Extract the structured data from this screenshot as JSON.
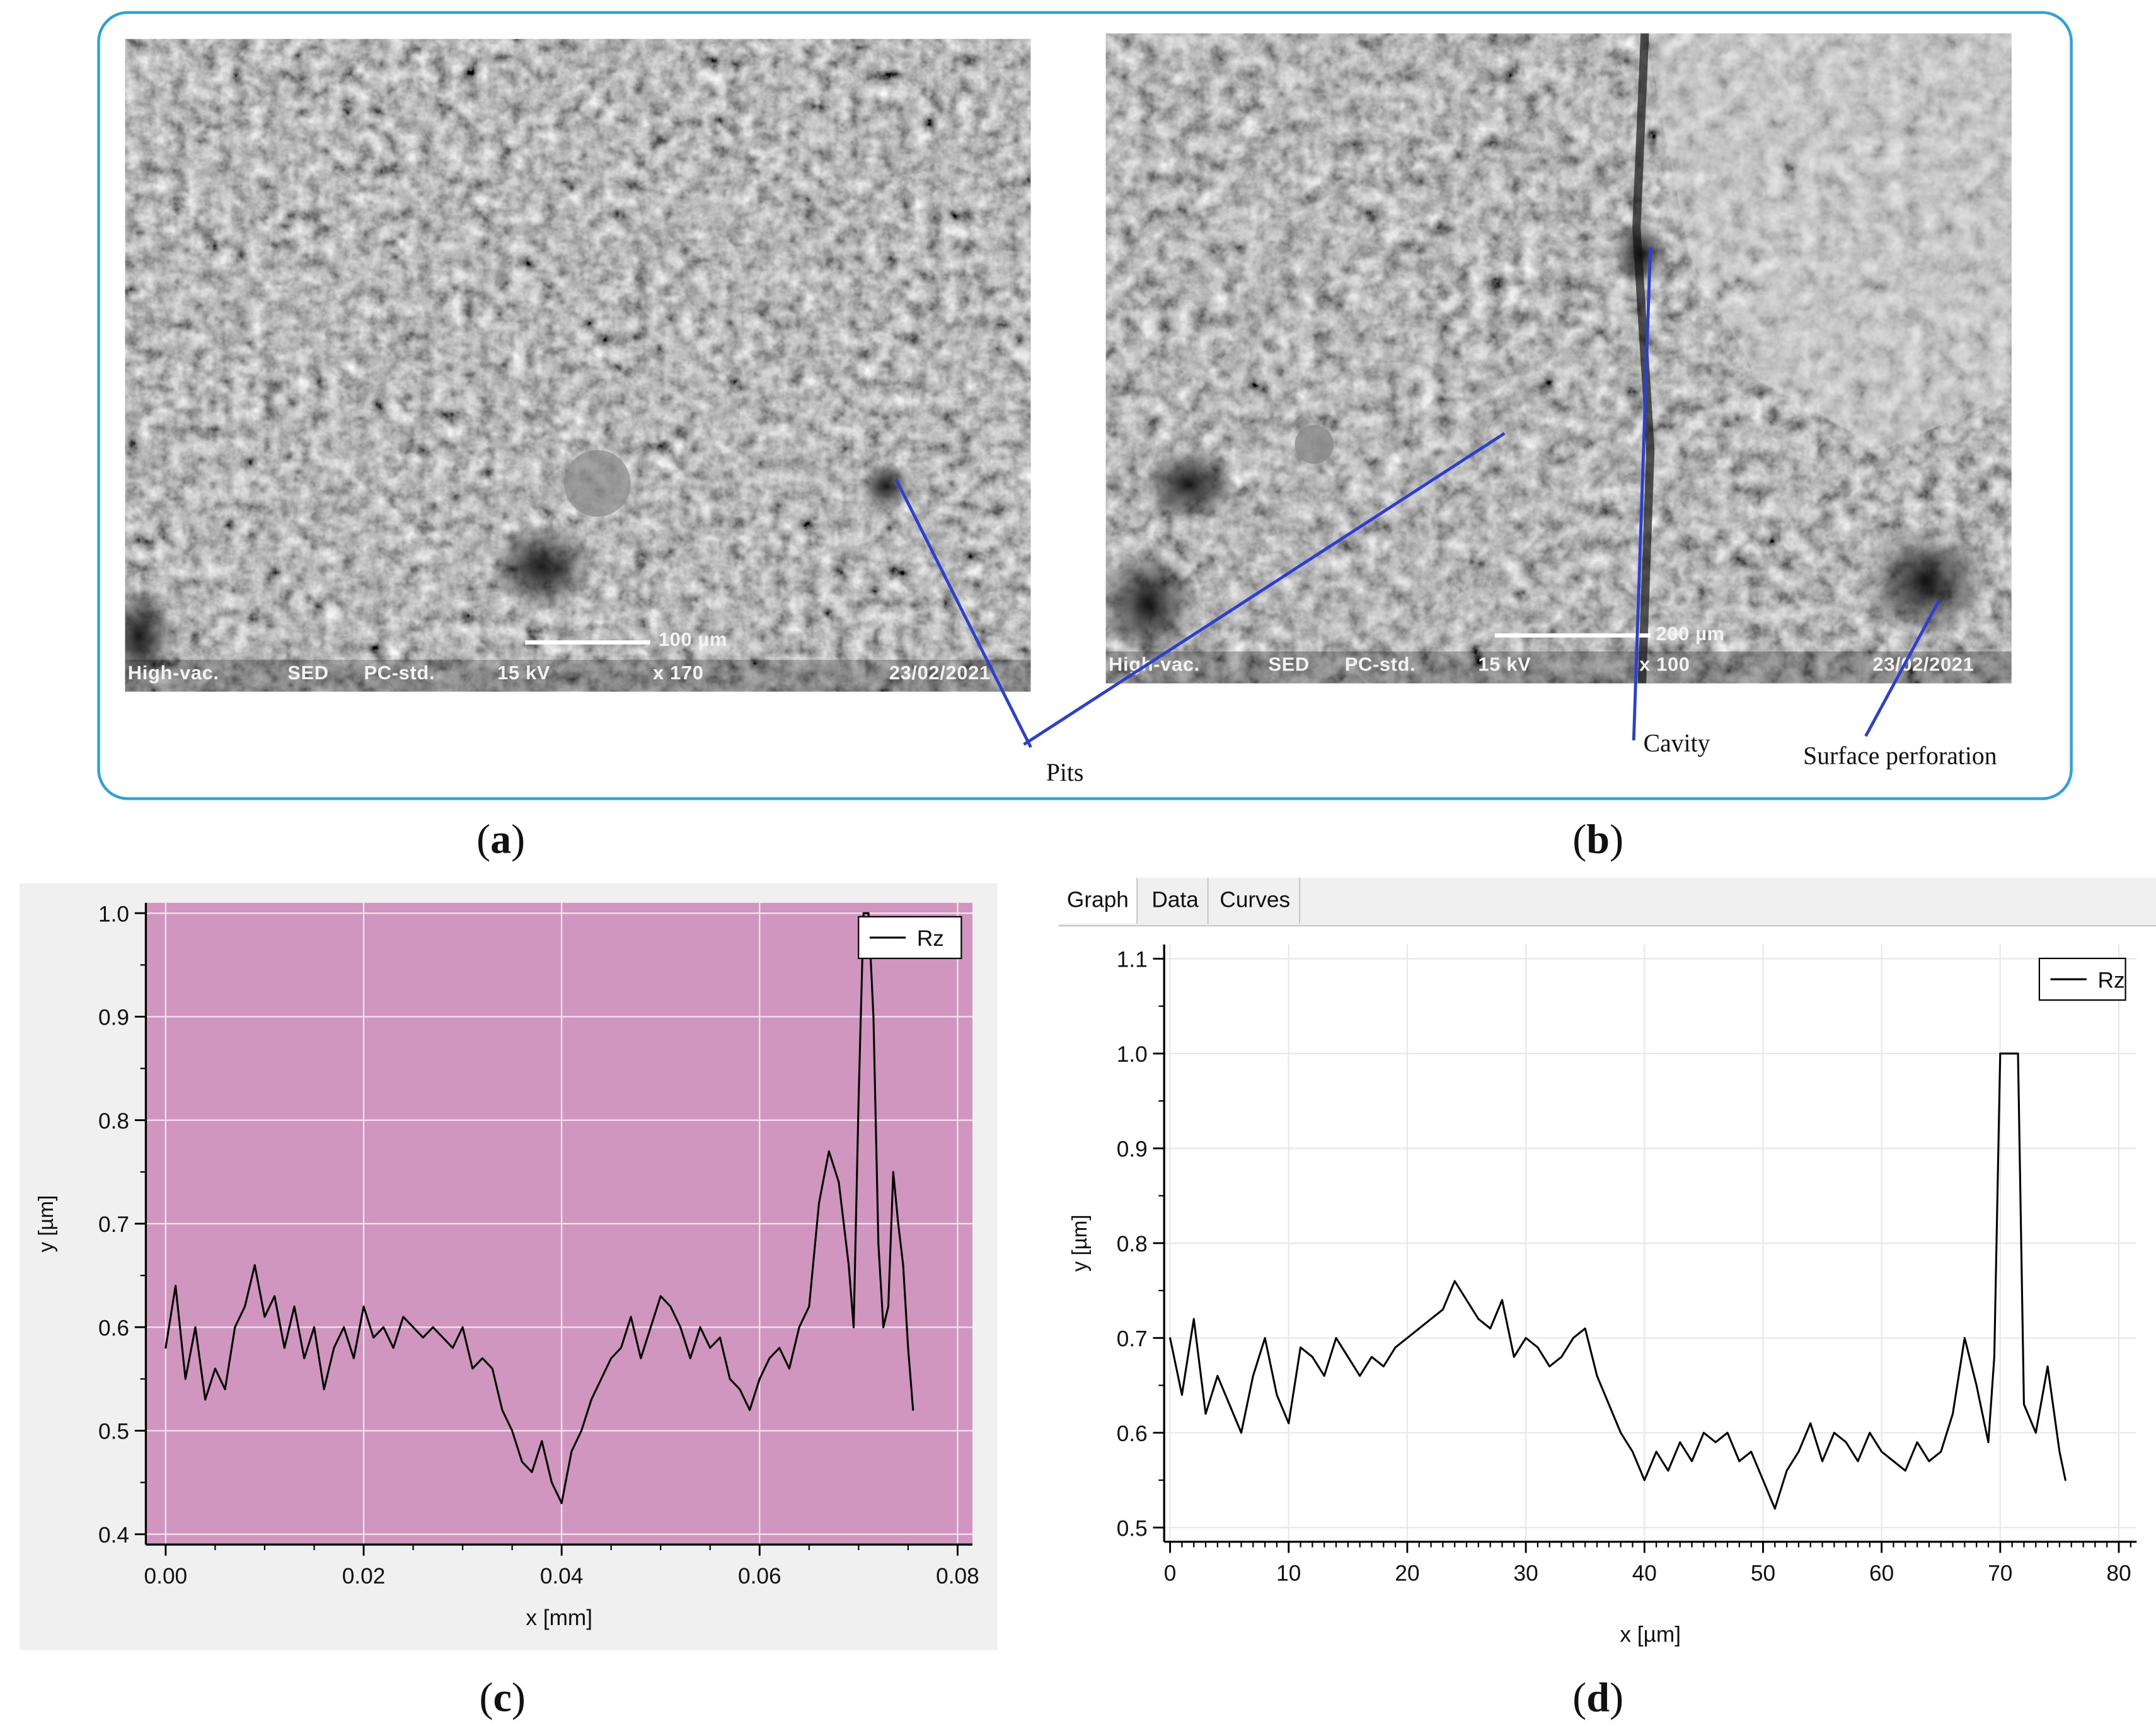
{
  "figure": {
    "panel_labels": [
      "a",
      "b",
      "c",
      "d"
    ],
    "callouts": {
      "pits": "Pits",
      "cavity": "Cavity",
      "surface_perforation": "Surface perforation"
    },
    "colors": {
      "frame": "#2aa3dc",
      "callout_line": "#2b3fd1",
      "plot_c_bg": "#d096c0"
    }
  },
  "sem_a": {
    "scale_bar": "100 µm",
    "databar": {
      "mode": "High-vac.",
      "detector": "SED",
      "probe": "PC-std.",
      "voltage": "15 kV",
      "magnification": "x 170",
      "date": "23/02/2021"
    }
  },
  "sem_b": {
    "scale_bar": "200 µm",
    "databar": {
      "mode": "High-vac.",
      "detector": "SED",
      "probe": "PC-std.",
      "voltage": "15 kV",
      "magnification": "x 100",
      "date": "23/02/2021"
    }
  },
  "tabs": [
    "Graph",
    "Data",
    "Curves"
  ],
  "chart_data": [
    {
      "id": "c",
      "type": "line",
      "xlabel": "x [mm]",
      "ylabel": "y [µm]",
      "xlim": [
        -0.002,
        0.0815
      ],
      "ylim": [
        0.39,
        1.01
      ],
      "xticks": [
        0.0,
        0.02,
        0.04,
        0.06,
        0.08
      ],
      "xtick_labels": [
        "0.00",
        "0.02",
        "0.04",
        "0.06",
        "0.08"
      ],
      "yticks": [
        0.4,
        0.5,
        0.6,
        0.7,
        0.8,
        0.9,
        1.0
      ],
      "ytick_labels": [
        "0.4",
        "0.5",
        "0.6",
        "0.7",
        "0.8",
        "0.9",
        "1.0"
      ],
      "grid": true,
      "legend": "top-right",
      "series": [
        {
          "name": "Rz",
          "x": [
            0.0,
            0.001,
            0.002,
            0.003,
            0.004,
            0.005,
            0.006,
            0.007,
            0.008,
            0.009,
            0.01,
            0.011,
            0.012,
            0.013,
            0.014,
            0.015,
            0.016,
            0.017,
            0.018,
            0.019,
            0.02,
            0.021,
            0.022,
            0.023,
            0.024,
            0.025,
            0.026,
            0.027,
            0.028,
            0.029,
            0.03,
            0.031,
            0.032,
            0.033,
            0.034,
            0.035,
            0.036,
            0.037,
            0.038,
            0.039,
            0.04,
            0.041,
            0.042,
            0.043,
            0.044,
            0.045,
            0.046,
            0.047,
            0.048,
            0.049,
            0.05,
            0.051,
            0.052,
            0.053,
            0.054,
            0.055,
            0.056,
            0.057,
            0.058,
            0.059,
            0.06,
            0.061,
            0.062,
            0.063,
            0.064,
            0.065,
            0.066,
            0.067,
            0.068,
            0.069,
            0.0695,
            0.07,
            0.0705,
            0.071,
            0.0715,
            0.072,
            0.0725,
            0.073,
            0.0735,
            0.074,
            0.0745,
            0.075,
            0.0755
          ],
          "y": [
            0.58,
            0.64,
            0.55,
            0.6,
            0.53,
            0.56,
            0.54,
            0.6,
            0.62,
            0.66,
            0.61,
            0.63,
            0.58,
            0.62,
            0.57,
            0.6,
            0.54,
            0.58,
            0.6,
            0.57,
            0.62,
            0.59,
            0.6,
            0.58,
            0.61,
            0.6,
            0.59,
            0.6,
            0.59,
            0.58,
            0.6,
            0.56,
            0.57,
            0.56,
            0.52,
            0.5,
            0.47,
            0.46,
            0.49,
            0.45,
            0.43,
            0.48,
            0.5,
            0.53,
            0.55,
            0.57,
            0.58,
            0.61,
            0.57,
            0.6,
            0.63,
            0.62,
            0.6,
            0.57,
            0.6,
            0.58,
            0.59,
            0.55,
            0.54,
            0.52,
            0.55,
            0.57,
            0.58,
            0.56,
            0.6,
            0.62,
            0.72,
            0.77,
            0.74,
            0.66,
            0.6,
            0.82,
            1.0,
            1.0,
            0.9,
            0.68,
            0.6,
            0.62,
            0.75,
            0.7,
            0.66,
            0.58,
            0.52
          ]
        }
      ]
    },
    {
      "id": "d",
      "type": "line",
      "xlabel": "x [µm]",
      "ylabel": "y [µm]",
      "xlim": [
        -0.5,
        81.5
      ],
      "ylim": [
        0.485,
        1.115
      ],
      "xticks": [
        0,
        10,
        20,
        30,
        40,
        50,
        60,
        70,
        80
      ],
      "xtick_labels": [
        "0",
        "10",
        "20",
        "30",
        "40",
        "50",
        "60",
        "70",
        "80"
      ],
      "yticks": [
        0.5,
        0.6,
        0.7,
        0.8,
        0.9,
        1.0,
        1.1
      ],
      "ytick_labels": [
        "0.5",
        "0.6",
        "0.7",
        "0.8",
        "0.9",
        "1.0",
        "1.1"
      ],
      "grid": true,
      "legend": "top-right",
      "series": [
        {
          "name": "Rz",
          "x": [
            0,
            1,
            2,
            3,
            4,
            5,
            6,
            7,
            8,
            9,
            10,
            11,
            12,
            13,
            14,
            15,
            16,
            17,
            18,
            19,
            20,
            21,
            22,
            23,
            24,
            25,
            26,
            27,
            28,
            29,
            30,
            31,
            32,
            33,
            34,
            35,
            36,
            37,
            38,
            39,
            40,
            41,
            42,
            43,
            44,
            45,
            46,
            47,
            48,
            49,
            50,
            51,
            52,
            53,
            54,
            55,
            56,
            57,
            58,
            59,
            60,
            61,
            62,
            63,
            64,
            65,
            66,
            67,
            68,
            69,
            69.5,
            70,
            70.5,
            71,
            71.5,
            72,
            73,
            74,
            75,
            75.5
          ],
          "y": [
            0.7,
            0.64,
            0.72,
            0.62,
            0.66,
            0.63,
            0.6,
            0.66,
            0.7,
            0.64,
            0.61,
            0.69,
            0.68,
            0.66,
            0.7,
            0.68,
            0.66,
            0.68,
            0.67,
            0.69,
            0.7,
            0.71,
            0.72,
            0.73,
            0.76,
            0.74,
            0.72,
            0.71,
            0.74,
            0.68,
            0.7,
            0.69,
            0.67,
            0.68,
            0.7,
            0.71,
            0.66,
            0.63,
            0.6,
            0.58,
            0.55,
            0.58,
            0.56,
            0.59,
            0.57,
            0.6,
            0.59,
            0.6,
            0.57,
            0.58,
            0.55,
            0.52,
            0.56,
            0.58,
            0.61,
            0.57,
            0.6,
            0.59,
            0.57,
            0.6,
            0.58,
            0.57,
            0.56,
            0.59,
            0.57,
            0.58,
            0.62,
            0.7,
            0.65,
            0.59,
            0.68,
            1.0,
            1.0,
            1.0,
            1.0,
            0.63,
            0.6,
            0.67,
            0.58,
            0.55
          ]
        }
      ]
    }
  ]
}
